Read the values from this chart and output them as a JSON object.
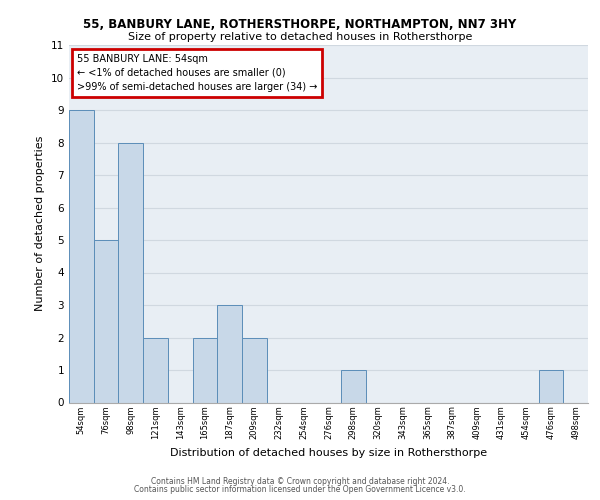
{
  "title1": "55, BANBURY LANE, ROTHERSTHORPE, NORTHAMPTON, NN7 3HY",
  "title2": "Size of property relative to detached houses in Rothersthorpe",
  "xlabel": "Distribution of detached houses by size in Rothersthorpe",
  "ylabel": "Number of detached properties",
  "categories": [
    "54sqm",
    "76sqm",
    "98sqm",
    "121sqm",
    "143sqm",
    "165sqm",
    "187sqm",
    "209sqm",
    "232sqm",
    "254sqm",
    "276sqm",
    "298sqm",
    "320sqm",
    "343sqm",
    "365sqm",
    "387sqm",
    "409sqm",
    "431sqm",
    "454sqm",
    "476sqm",
    "498sqm"
  ],
  "values": [
    9,
    5,
    8,
    2,
    0,
    2,
    3,
    2,
    0,
    0,
    0,
    1,
    0,
    0,
    0,
    0,
    0,
    0,
    0,
    1,
    0
  ],
  "bar_color": "#c8d8e8",
  "bar_edge_color": "#5b8db8",
  "annotation_line1": "55 BANBURY LANE: 54sqm",
  "annotation_line2": "← <1% of detached houses are smaller (0)",
  "annotation_line3": ">99% of semi-detached houses are larger (34) →",
  "annotation_box_color": "#ffffff",
  "annotation_box_edge_color": "#cc0000",
  "ylim": [
    0,
    11
  ],
  "yticks": [
    0,
    1,
    2,
    3,
    4,
    5,
    6,
    7,
    8,
    9,
    10,
    11
  ],
  "grid_color": "#d0d8e0",
  "bg_color": "#e8eef4",
  "footer1": "Contains HM Land Registry data © Crown copyright and database right 2024.",
  "footer2": "Contains public sector information licensed under the Open Government Licence v3.0.",
  "title_fontsize": 8.5,
  "subtitle_fontsize": 8,
  "ylabel_fontsize": 8,
  "xlabel_fontsize": 8,
  "ytick_fontsize": 7.5,
  "xtick_fontsize": 6,
  "footer_fontsize": 5.5,
  "annot_fontsize": 7
}
